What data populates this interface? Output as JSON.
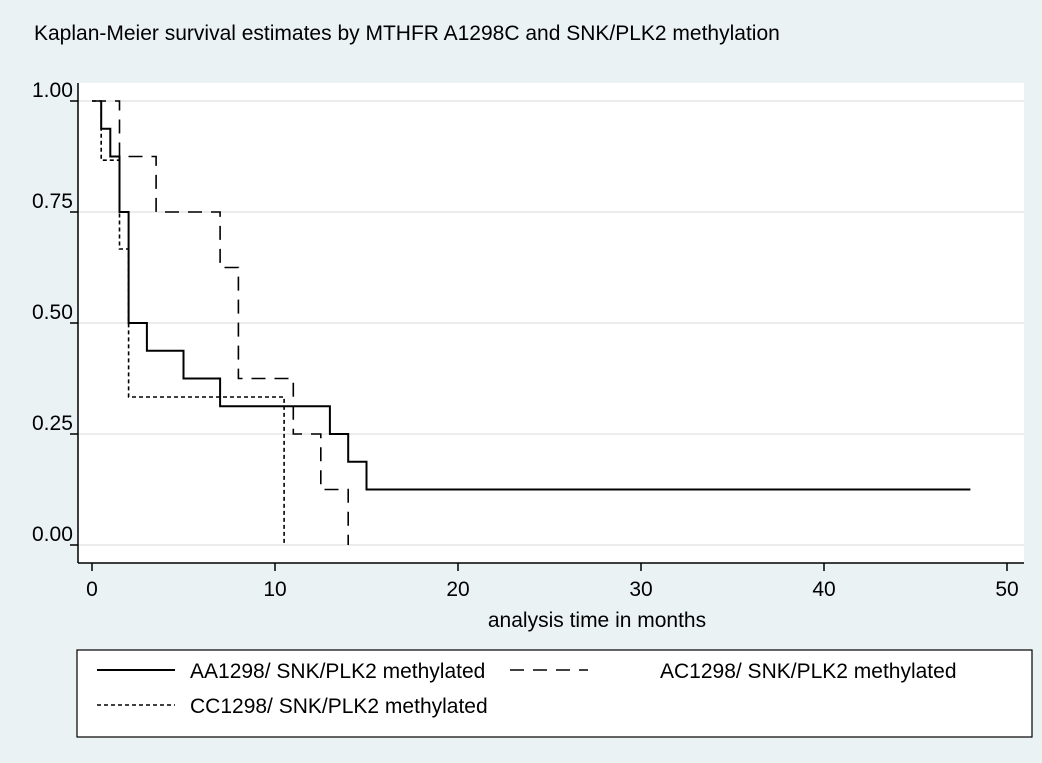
{
  "chart_data": {
    "type": "line",
    "title": "Kaplan-Meier survival estimates by MTHFR A1298C and SNK/PLK2 methylation",
    "xlabel": "analysis time in months",
    "ylabel": "",
    "xlim": [
      0,
      50
    ],
    "ylim": [
      0,
      1
    ],
    "xticks": [
      "0",
      "10",
      "20",
      "30",
      "40",
      "50"
    ],
    "yticks": [
      "0.00",
      "0.25",
      "0.50",
      "0.75",
      "1.00"
    ],
    "grid": true,
    "legend_position": "bottom",
    "series": [
      {
        "name": "AA1298/ SNK/PLK2 methylated",
        "style": "solid",
        "points": [
          [
            0.5,
            1.0
          ],
          [
            0.5,
            0.9375
          ],
          [
            1.0,
            0.9375
          ],
          [
            1.0,
            0.875
          ],
          [
            1.5,
            0.875
          ],
          [
            1.5,
            0.75
          ],
          [
            2.0,
            0.75
          ],
          [
            2.0,
            0.5
          ],
          [
            3.0,
            0.5
          ],
          [
            3.0,
            0.4375
          ],
          [
            5.0,
            0.4375
          ],
          [
            5.0,
            0.375
          ],
          [
            7.0,
            0.375
          ],
          [
            7.0,
            0.3125
          ],
          [
            13.0,
            0.3125
          ],
          [
            13.0,
            0.25
          ],
          [
            14.0,
            0.25
          ],
          [
            14.0,
            0.1875
          ],
          [
            15.0,
            0.1875
          ],
          [
            15.0,
            0.125
          ],
          [
            48.0,
            0.125
          ]
        ]
      },
      {
        "name": "AC1298/ SNK/PLK2 methylated",
        "style": "dashed",
        "points": [
          [
            0.0,
            1.0
          ],
          [
            1.5,
            1.0
          ],
          [
            1.5,
            0.875
          ],
          [
            3.5,
            0.875
          ],
          [
            3.5,
            0.75
          ],
          [
            7.0,
            0.75
          ],
          [
            7.0,
            0.625
          ],
          [
            8.0,
            0.625
          ],
          [
            8.0,
            0.375
          ],
          [
            11.0,
            0.375
          ],
          [
            11.0,
            0.25
          ],
          [
            12.5,
            0.25
          ],
          [
            12.5,
            0.125
          ],
          [
            14.0,
            0.125
          ],
          [
            14.0,
            0.0
          ]
        ]
      },
      {
        "name": "CC1298/ SNK/PLK2 methylated",
        "style": "dotted",
        "points": [
          [
            0.0,
            1.0
          ],
          [
            0.5,
            1.0
          ],
          [
            0.5,
            0.8667
          ],
          [
            1.5,
            0.8667
          ],
          [
            1.5,
            0.6667
          ],
          [
            2.0,
            0.6667
          ],
          [
            2.0,
            0.3333
          ],
          [
            10.5,
            0.3333
          ],
          [
            10.5,
            0.0
          ]
        ]
      }
    ]
  }
}
